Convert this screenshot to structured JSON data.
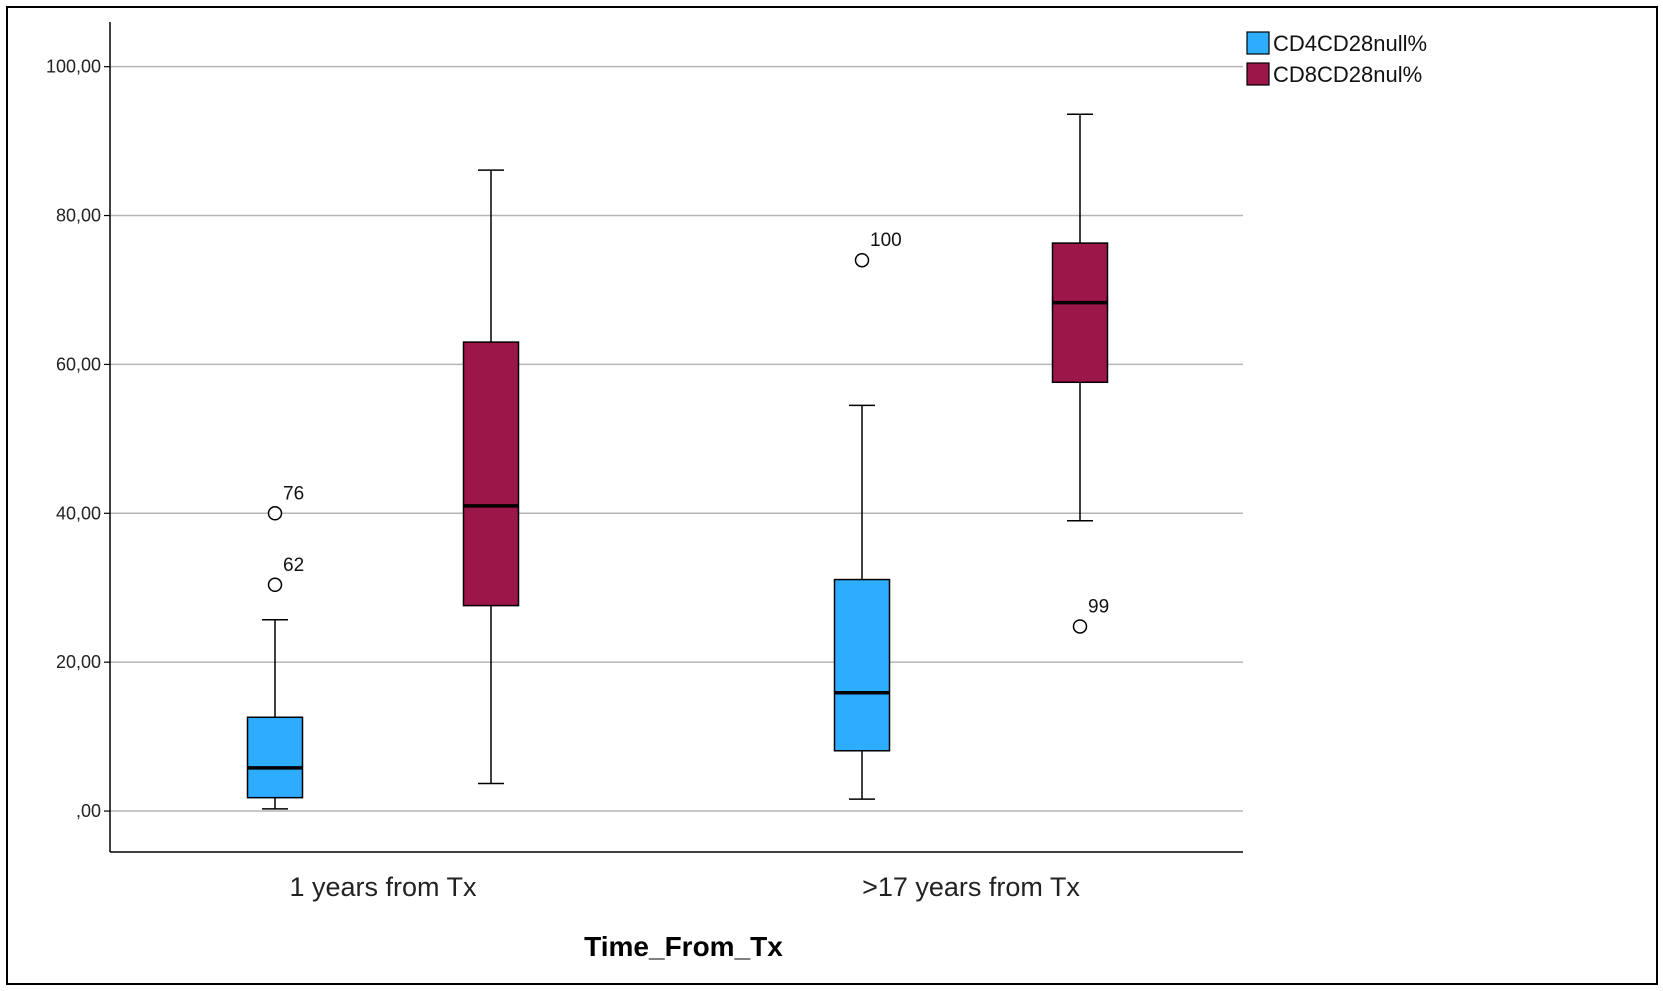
{
  "chart_data": {
    "type": "boxplot",
    "title": "",
    "xlabel": "Time_From_Tx",
    "ylabel": "",
    "ylim": [
      -5.5,
      106
    ],
    "yticks": [
      0,
      20,
      40,
      60,
      80,
      100
    ],
    "ytick_labels": [
      ",00",
      "20,00",
      "40,00",
      "60,00",
      "80,00",
      "100,00"
    ],
    "grid": true,
    "legend_position": "top-right",
    "categories": [
      "1 years from Tx",
      ">17 years from Tx"
    ],
    "series": [
      {
        "name": "CD4CD28null%",
        "color": "#2EADFF",
        "boxes": [
          {
            "min": 0.3,
            "q1": 1.8,
            "median": 5.8,
            "q3": 12.6,
            "max": 25.7,
            "outliers": [
              {
                "value": 40.0,
                "label": "76"
              },
              {
                "value": 30.4,
                "label": "62"
              }
            ]
          },
          {
            "min": 1.6,
            "q1": 8.1,
            "median": 15.9,
            "q3": 31.1,
            "max": 54.5,
            "outliers": [
              {
                "value": 74.0,
                "label": "100"
              }
            ]
          }
        ]
      },
      {
        "name": "CD8CD28nul%",
        "color": "#9C164A",
        "boxes": [
          {
            "min": 3.7,
            "q1": 27.6,
            "median": 41.0,
            "q3": 63.0,
            "max": 86.1,
            "outliers": []
          },
          {
            "min": 39.0,
            "q1": 57.6,
            "median": 68.3,
            "q3": 76.3,
            "max": 93.6,
            "outliers": [
              {
                "value": 24.8,
                "label": "99"
              }
            ]
          }
        ]
      }
    ]
  }
}
